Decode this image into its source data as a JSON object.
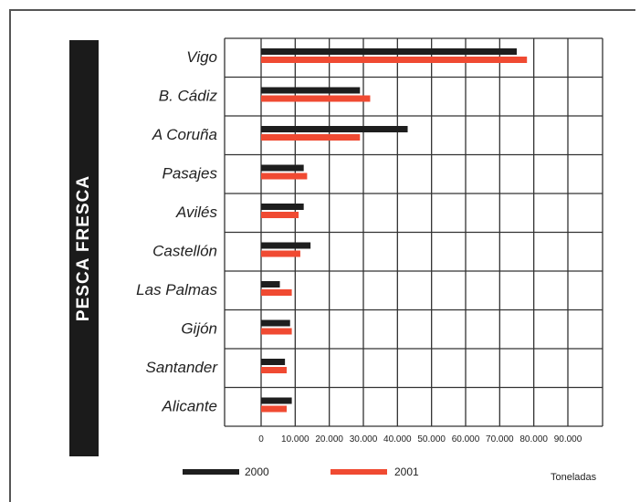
{
  "banner": {
    "text": "PESCA FRESCA"
  },
  "units": "Toneladas",
  "colors": {
    "series_2000": "#1e1e1e",
    "series_2001": "#f04a32",
    "grid": "#333333"
  },
  "chart_data": {
    "type": "bar",
    "orientation": "horizontal",
    "title": "PESCA FRESCA",
    "xlabel": "Toneladas",
    "ylabel": "",
    "xlim": [
      0,
      90000
    ],
    "x_ticks": [
      0,
      10000,
      20000,
      30000,
      40000,
      50000,
      60000,
      70000,
      80000,
      90000
    ],
    "x_tick_labels": [
      "0",
      "10.000",
      "20.000",
      "30.000",
      "40.000",
      "50.000",
      "60.000",
      "70.000",
      "80.000",
      "90.000"
    ],
    "grid": true,
    "legend_position": "bottom",
    "categories": [
      "Vigo",
      "B. Cádiz",
      "A Coruña",
      "Pasajes",
      "Avilés",
      "Castellón",
      "Las Palmas",
      "Gijón",
      "Santander",
      "Alicante"
    ],
    "series": [
      {
        "name": "2000",
        "color": "#1e1e1e",
        "values": [
          75000,
          29000,
          43000,
          12500,
          12500,
          14500,
          5500,
          8500,
          7000,
          9000
        ]
      },
      {
        "name": "2001",
        "color": "#f04a32",
        "values": [
          78000,
          32000,
          29000,
          13500,
          11000,
          11500,
          9000,
          9000,
          7500,
          7500
        ]
      }
    ]
  }
}
